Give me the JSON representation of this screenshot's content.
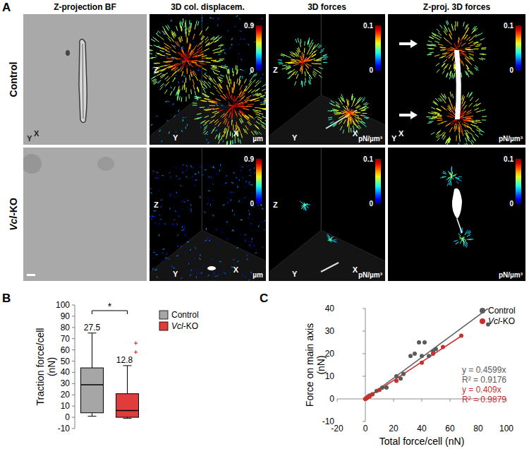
{
  "figure": {
    "panel_labels": [
      "A",
      "B",
      "C"
    ],
    "panel_a": {
      "columns": [
        "Z-projection BF",
        "3D col. displacem.",
        "3D forces",
        "Z-proj. 3D forces"
      ],
      "rows": [
        "Control",
        "Vcl-KO"
      ],
      "colorbars": [
        {
          "range": [
            0,
            0.9
          ],
          "unit": "µm"
        },
        {
          "range": [
            0,
            0.1
          ],
          "unit": "pN/µm³"
        },
        {
          "range": [
            0,
            0.1
          ],
          "unit": "pN/µm³"
        }
      ],
      "cube_axes": [
        "Z",
        "Y",
        "X"
      ],
      "projection_axes": [
        "Y",
        "X"
      ]
    }
  },
  "chart_data": [
    {
      "type": "box",
      "y_label": [
        "Traction force/cell",
        "(nN)"
      ],
      "ylim": [
        -10,
        100
      ],
      "yticks": [
        -10,
        0,
        10,
        20,
        30,
        40,
        50,
        60,
        70,
        80,
        90,
        100
      ],
      "legend": "right",
      "significance": "*",
      "boxes": [
        {
          "name": "Control",
          "color": "#a6a6a6",
          "whisker_low": 1,
          "q1": 4,
          "median": 29,
          "q3": 44,
          "whisker_high": 75,
          "mean": 27.5,
          "outliers": []
        },
        {
          "name": "Vcl-KO",
          "color": "#e03c3c",
          "whisker_low": -1,
          "q1": 0,
          "median": 6,
          "q3": 21,
          "whisker_high": 46,
          "mean": 12.8,
          "outliers": [
            58,
            66
          ]
        }
      ]
    },
    {
      "type": "scatter",
      "x_label": "Total force/cell (nN)",
      "y_label": [
        "Force on main axis",
        "(nN)"
      ],
      "xlim": [
        -20,
        100
      ],
      "xticks": [
        -20,
        0,
        20,
        40,
        60,
        80,
        100
      ],
      "ylim": [
        -10,
        40
      ],
      "yticks": [
        -10,
        0,
        10,
        20,
        30,
        40
      ],
      "legend": "top-right",
      "series": [
        {
          "name": "Control",
          "color": "#5a5a5a",
          "marker": "circle",
          "x": [
            0,
            1,
            2,
            3,
            5,
            8,
            12,
            15,
            22,
            25,
            27,
            32,
            35,
            38,
            40,
            42,
            45,
            48,
            50,
            87
          ],
          "values": [
            0,
            0.5,
            1,
            1.5,
            2,
            3.5,
            5,
            5,
            10,
            9,
            11,
            19,
            20,
            25,
            19,
            25,
            19,
            21,
            22,
            33
          ],
          "fit_slope": 0.4599,
          "fit_x": [
            0,
            88
          ],
          "fit_labels": [
            "y = 0.4599x",
            "R² = 0.9176"
          ]
        },
        {
          "name": "Vcl-KO",
          "color": "#c8302c",
          "marker": "circle",
          "x": [
            0,
            1,
            2,
            3,
            5,
            10,
            22,
            40,
            48,
            55,
            68
          ],
          "values": [
            0,
            0.3,
            1,
            1,
            2,
            4,
            8,
            16,
            20,
            23,
            28
          ],
          "fit_slope": 0.409,
          "fit_x": [
            0,
            68
          ],
          "fit_labels": [
            "y = 0.409x",
            "R² = 0.9879"
          ]
        }
      ]
    }
  ]
}
